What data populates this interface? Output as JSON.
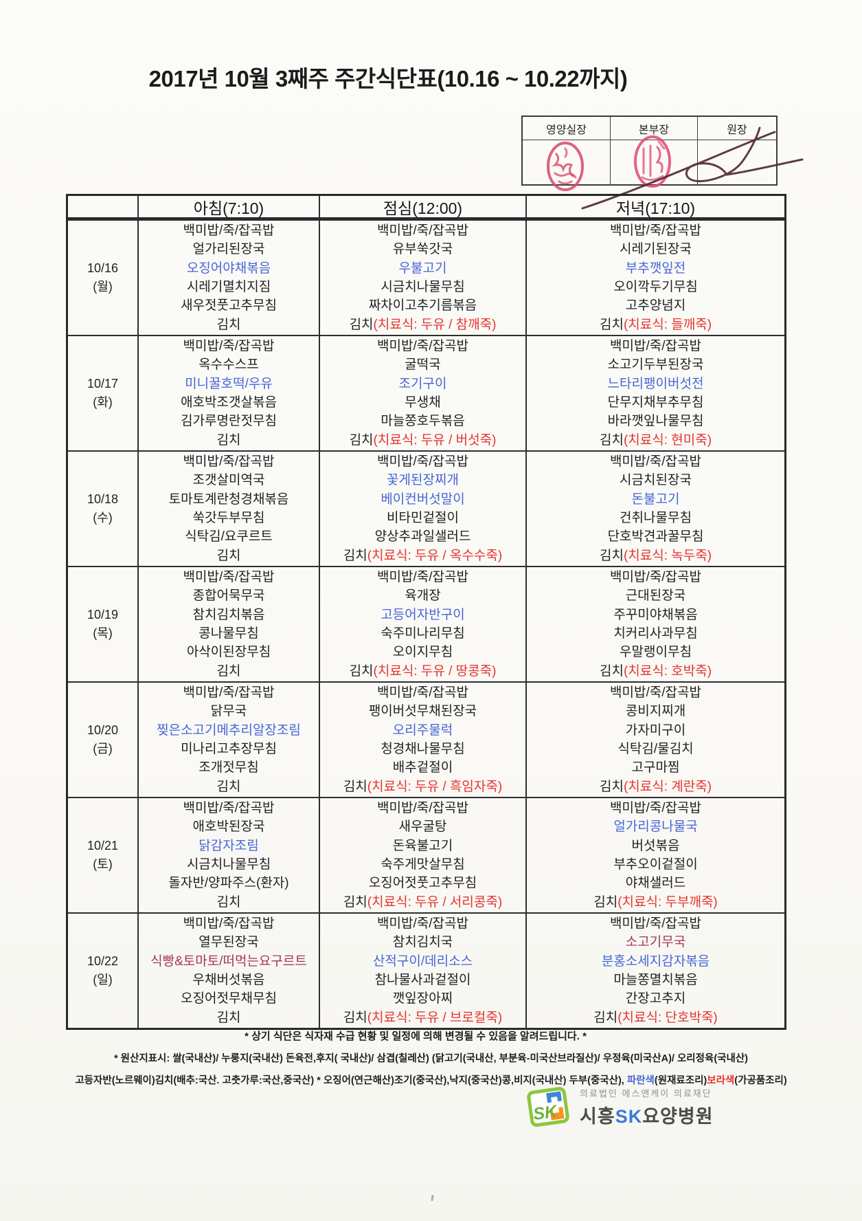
{
  "title": "2017년 10월 3째주 주간식단표(10.16 ~ 10.22까지)",
  "approval": {
    "columns": [
      "영양실장",
      "본부장",
      "원장"
    ],
    "stamps": [
      "nutrition-chief-red-seal",
      "hq-chief-red-seal"
    ],
    "signature": "director-handwritten-signature"
  },
  "colors": {
    "k": "#1f1f22",
    "b": "#4565d8",
    "r": "#e5332e",
    "p": "#a8335c",
    "gray": "#4a4a4c",
    "logoblue": "#3a7ad9"
  },
  "table": {
    "time_headers": [
      "아침(7:10)",
      "점심(12:00)",
      "저녁(17:10)"
    ],
    "days": [
      {
        "date": "10/16",
        "weekday": "(월)",
        "meals": [
          [
            [
              [
                "백미밥/죽/잡곡밥",
                "k"
              ]
            ],
            [
              [
                "얼가리된장국",
                "k"
              ]
            ],
            [
              [
                "오징어야채볶음",
                "b"
              ]
            ],
            [
              [
                "시레기멸치지짐",
                "k"
              ]
            ],
            [
              [
                "새우젓풋고추무침",
                "k"
              ]
            ],
            [
              [
                "김치",
                "k"
              ]
            ]
          ],
          [
            [
              [
                "백미밥/죽/잡곡밥",
                "k"
              ]
            ],
            [
              [
                "유부쑥갓국",
                "k"
              ]
            ],
            [
              [
                "우불고기",
                "b"
              ]
            ],
            [
              [
                "시금치나물무침",
                "k"
              ]
            ],
            [
              [
                "짜차이고추기름볶음",
                "k"
              ]
            ],
            [
              [
                "김치",
                "k"
              ],
              [
                "(치료식: 두유 / 참깨죽)",
                "r"
              ]
            ]
          ],
          [
            [
              [
                "백미밥/죽/잡곡밥",
                "k"
              ]
            ],
            [
              [
                "시레기된장국",
                "k"
              ]
            ],
            [
              [
                "부추깻잎전",
                "b"
              ]
            ],
            [
              [
                "오이깍두기무침",
                "k"
              ]
            ],
            [
              [
                "고추양념지",
                "k"
              ]
            ],
            [
              [
                "김치",
                "k"
              ],
              [
                "(치료식: 들깨죽)",
                "r"
              ]
            ]
          ]
        ]
      },
      {
        "date": "10/17",
        "weekday": "(화)",
        "meals": [
          [
            [
              [
                "백미밥/죽/잡곡밥",
                "k"
              ]
            ],
            [
              [
                "옥수수스프",
                "k"
              ]
            ],
            [
              [
                "미니꿀호떡/우유",
                "b"
              ]
            ],
            [
              [
                "애호박조갯살볶음",
                "k"
              ]
            ],
            [
              [
                "김가루명란젓무침",
                "k"
              ]
            ],
            [
              [
                "김치",
                "k"
              ]
            ]
          ],
          [
            [
              [
                "백미밥/죽/잡곡밥",
                "k"
              ]
            ],
            [
              [
                "굴떡국",
                "k"
              ]
            ],
            [
              [
                "조기구이",
                "b"
              ]
            ],
            [
              [
                "무생채",
                "k"
              ]
            ],
            [
              [
                "마늘쫑호두볶음",
                "k"
              ]
            ],
            [
              [
                "김치",
                "k"
              ],
              [
                "(치료식: 두유 / 버섯죽)",
                "r"
              ]
            ]
          ],
          [
            [
              [
                "백미밥/죽/잡곡밥",
                "k"
              ]
            ],
            [
              [
                "소고기두부된장국",
                "k"
              ]
            ],
            [
              [
                "느타리팽이버섯전",
                "b"
              ]
            ],
            [
              [
                "단무지채부추무침",
                "k"
              ]
            ],
            [
              [
                "바라깻잎나물무침",
                "k"
              ]
            ],
            [
              [
                "김치",
                "k"
              ],
              [
                "(치료식: 현미죽)",
                "r"
              ]
            ]
          ]
        ]
      },
      {
        "date": "10/18",
        "weekday": "(수)",
        "meals": [
          [
            [
              [
                "백미밥/죽/잡곡밥",
                "k"
              ]
            ],
            [
              [
                "조갯살미역국",
                "k"
              ]
            ],
            [
              [
                "토마토계란청경채볶음",
                "k"
              ]
            ],
            [
              [
                "쑥갓두부무침",
                "k"
              ]
            ],
            [
              [
                "식탁김/요쿠르트",
                "k"
              ]
            ],
            [
              [
                "김치",
                "k"
              ]
            ]
          ],
          [
            [
              [
                "백미밥/죽/잡곡밥",
                "k"
              ]
            ],
            [
              [
                "꽃게된장찌개",
                "b"
              ]
            ],
            [
              [
                "베이컨버섯말이",
                "b"
              ]
            ],
            [
              [
                "비타민겉절이",
                "k"
              ]
            ],
            [
              [
                "양상추과일샐러드",
                "k"
              ]
            ],
            [
              [
                "김치",
                "k"
              ],
              [
                "(치료식: 두유 / 옥수수죽)",
                "r"
              ]
            ]
          ],
          [
            [
              [
                "백미밥/죽/잡곡밥",
                "k"
              ]
            ],
            [
              [
                "시금치된장국",
                "k"
              ]
            ],
            [
              [
                "돈불고기",
                "b"
              ]
            ],
            [
              [
                "건취나물무침",
                "k"
              ]
            ],
            [
              [
                "단호박견과꿀무침",
                "k"
              ]
            ],
            [
              [
                "김치",
                "k"
              ],
              [
                "(치료식: 녹두죽)",
                "r"
              ]
            ]
          ]
        ]
      },
      {
        "date": "10/19",
        "weekday": "(목)",
        "meals": [
          [
            [
              [
                "백미밥/죽/잡곡밥",
                "k"
              ]
            ],
            [
              [
                "종합어묵무국",
                "k"
              ]
            ],
            [
              [
                "참치김치볶음",
                "k"
              ]
            ],
            [
              [
                "콩나물무침",
                "k"
              ]
            ],
            [
              [
                "아삭이된장무침",
                "k"
              ]
            ],
            [
              [
                "김치",
                "k"
              ]
            ]
          ],
          [
            [
              [
                "백미밥/죽/잡곡밥",
                "k"
              ]
            ],
            [
              [
                "육개장",
                "k"
              ]
            ],
            [
              [
                "고등어자반구이",
                "b"
              ]
            ],
            [
              [
                "숙주미나리무침",
                "k"
              ]
            ],
            [
              [
                "오이지무침",
                "k"
              ]
            ],
            [
              [
                "김치",
                "k"
              ],
              [
                "(치료식: 두유 / 땅콩죽)",
                "r"
              ]
            ]
          ],
          [
            [
              [
                "백미밥/죽/잡곡밥",
                "k"
              ]
            ],
            [
              [
                "근대된장국",
                "k"
              ]
            ],
            [
              [
                "주꾸미야채볶음",
                "k"
              ]
            ],
            [
              [
                "치커리사과무침",
                "k"
              ]
            ],
            [
              [
                "우말랭이무침",
                "k"
              ]
            ],
            [
              [
                "김치",
                "k"
              ],
              [
                "(치료식: 호박죽)",
                "r"
              ]
            ]
          ]
        ]
      },
      {
        "date": "10/20",
        "weekday": "(금)",
        "meals": [
          [
            [
              [
                "백미밥/죽/잡곡밥",
                "k"
              ]
            ],
            [
              [
                "닭무국",
                "k"
              ]
            ],
            [
              [
                "찢은소고기메추리알장조림",
                "b"
              ]
            ],
            [
              [
                "미나리고추장무침",
                "k"
              ]
            ],
            [
              [
                "조개젓무침",
                "k"
              ]
            ],
            [
              [
                "김치",
                "k"
              ]
            ]
          ],
          [
            [
              [
                "백미밥/죽/잡곡밥",
                "k"
              ]
            ],
            [
              [
                "팽이버섯무채된장국",
                "k"
              ]
            ],
            [
              [
                "오리주물럭",
                "b"
              ]
            ],
            [
              [
                "청경채나물무침",
                "k"
              ]
            ],
            [
              [
                "배추겉절이",
                "k"
              ]
            ],
            [
              [
                "김치",
                "k"
              ],
              [
                "(치료식: 두유 / 흑임자죽)",
                "r"
              ]
            ]
          ],
          [
            [
              [
                "백미밥/죽/잡곡밥",
                "k"
              ]
            ],
            [
              [
                "콩비지찌개",
                "k"
              ]
            ],
            [
              [
                "가자미구이",
                "k"
              ]
            ],
            [
              [
                "식탁김/물김치",
                "k"
              ]
            ],
            [
              [
                "고구마찜",
                "k"
              ]
            ],
            [
              [
                "김치",
                "k"
              ],
              [
                "(치료식: 계란죽)",
                "r"
              ]
            ]
          ]
        ]
      },
      {
        "date": "10/21",
        "weekday": "(토)",
        "meals": [
          [
            [
              [
                "백미밥/죽/잡곡밥",
                "k"
              ]
            ],
            [
              [
                "애호박된장국",
                "k"
              ]
            ],
            [
              [
                "닭감자조림",
                "b"
              ]
            ],
            [
              [
                "시금치나물무침",
                "k"
              ]
            ],
            [
              [
                "돌자반/양파주스(환자)",
                "k"
              ]
            ],
            [
              [
                "김치",
                "k"
              ]
            ]
          ],
          [
            [
              [
                "백미밥/죽/잡곡밥",
                "k"
              ]
            ],
            [
              [
                "새우굴탕",
                "k"
              ]
            ],
            [
              [
                "돈육불고기",
                "k"
              ]
            ],
            [
              [
                "숙주게맛살무침",
                "k"
              ]
            ],
            [
              [
                "오징어젓풋고추무침",
                "k"
              ]
            ],
            [
              [
                "김치",
                "k"
              ],
              [
                "(치료식: 두유 / 서리콩죽)",
                "r"
              ]
            ]
          ],
          [
            [
              [
                "백미밥/죽/잡곡밥",
                "k"
              ]
            ],
            [
              [
                "얼가리콩나물국",
                "b"
              ]
            ],
            [
              [
                "버섯볶음",
                "k"
              ]
            ],
            [
              [
                "부추오이겉절이",
                "k"
              ]
            ],
            [
              [
                "야채샐러드",
                "k"
              ]
            ],
            [
              [
                "김치",
                "k"
              ],
              [
                "(치료식: 두부깨죽)",
                "r"
              ]
            ]
          ]
        ]
      },
      {
        "date": "10/22",
        "weekday": "(일)",
        "meals": [
          [
            [
              [
                "백미밥/죽/잡곡밥",
                "k"
              ]
            ],
            [
              [
                "열무된장국",
                "k"
              ]
            ],
            [
              [
                "식빵&토마토/떠먹는요구르트",
                "p"
              ]
            ],
            [
              [
                "우채버섯볶음",
                "k"
              ]
            ],
            [
              [
                "오징어젓무채무침",
                "k"
              ]
            ],
            [
              [
                "김치",
                "k"
              ]
            ]
          ],
          [
            [
              [
                "백미밥/죽/잡곡밥",
                "k"
              ]
            ],
            [
              [
                "참치김치국",
                "k"
              ]
            ],
            [
              [
                "산적구이/데리소스",
                "b"
              ]
            ],
            [
              [
                "참나물사과겉절이",
                "k"
              ]
            ],
            [
              [
                "깻잎장아찌",
                "k"
              ]
            ],
            [
              [
                "김치",
                "k"
              ],
              [
                "(치료식: 두유 / 브로컬죽)",
                "r"
              ]
            ]
          ],
          [
            [
              [
                "백미밥/죽/잡곡밥",
                "k"
              ]
            ],
            [
              [
                "소고기무국",
                "p"
              ]
            ],
            [
              [
                "분홍소세지감자볶음",
                "b"
              ]
            ],
            [
              [
                "마늘쫑멸치볶음",
                "k"
              ]
            ],
            [
              [
                "간장고추지",
                "k"
              ]
            ],
            [
              [
                "김치",
                "k"
              ],
              [
                "(치료식: 단호박죽)",
                "r"
              ]
            ]
          ]
        ]
      }
    ]
  },
  "notes": {
    "change_notice": "* 상기 식단은 식자재 수급 현황 및 일정에 의해 변경될 수 있음을 알려드립니다. *",
    "origin_line1": "* 원산지표시: 쌀(국내산)/ 누룽지(국내산) 돈육전,후지( 국내산)/ 삼겹(칠레산) (닭고기(국내산, 부분육-미국산브라질산)/ 우정육(미국산A)/ 오리정육(국내산)",
    "origin_line2_segments": [
      [
        "고등자반(노르웨이)김치(배추:국산. 고춧가루:국산,중국산) * 오징어(연근해산)조기(중국산),낙지(중국산)콩,비지(국내산) 두부(중국산), ",
        "k"
      ],
      [
        "파란색",
        "b"
      ],
      [
        "(원재료조리)",
        "k"
      ],
      [
        "보라색",
        "r"
      ],
      [
        "(가공품조리)",
        "k"
      ]
    ]
  },
  "footer": {
    "foundation": "의료법인 에스앤케이 의료재단",
    "hospital_segments": [
      [
        "시흥",
        "gray"
      ],
      [
        "SK",
        "logoblue"
      ],
      [
        "요양병원",
        "gray"
      ]
    ]
  }
}
